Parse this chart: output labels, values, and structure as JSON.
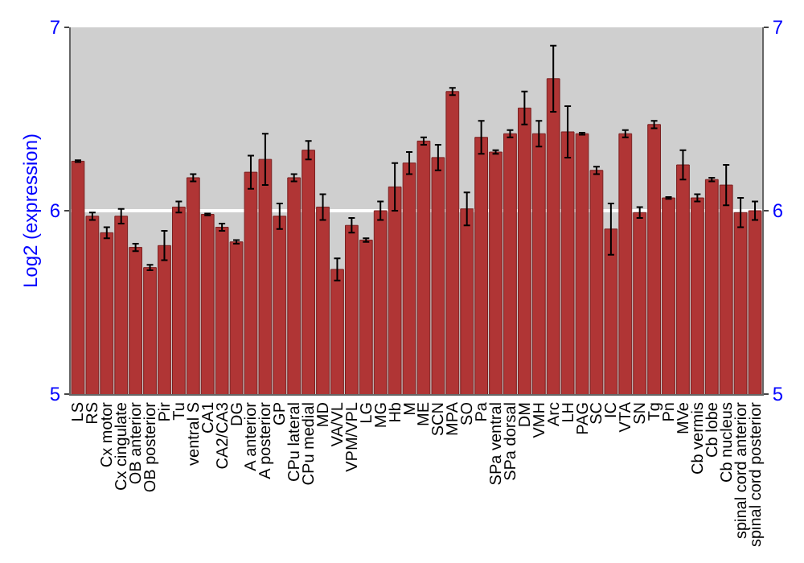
{
  "chart_data": {
    "type": "bar",
    "ylabel": "Log2 (expression)",
    "categories": [
      "LS",
      "RS",
      "Cx motor",
      "Cx cingulate",
      "OB anterior",
      "OB posterior",
      "Pir",
      "Tu",
      "ventral S",
      "CA1",
      "CA2/CA3",
      "DG",
      "A anterior",
      "A posterior",
      "GP",
      "CPu lateral",
      "CPu medial",
      "MD",
      "VA/VL",
      "VPM/VPL",
      "LG",
      "MG",
      "Hb",
      "M",
      "ME",
      "SCN",
      "MPA",
      "SO",
      "Pa",
      "SPa ventral",
      "SPa dorsal",
      "DM",
      "VMH",
      "Arc",
      "LH",
      "PAG",
      "SC",
      "IC",
      "VTA",
      "SN",
      "Tg",
      "Pn",
      "MVe",
      "Cb vermis",
      "Cb lobe",
      "Cb nucleus",
      "spinal cord anterior",
      "spinal cord posterior"
    ],
    "values": [
      6.27,
      5.97,
      5.88,
      5.97,
      5.8,
      5.69,
      5.81,
      6.02,
      6.18,
      5.98,
      5.91,
      5.83,
      6.21,
      6.28,
      5.97,
      6.18,
      6.33,
      6.02,
      5.68,
      5.92,
      5.84,
      6.0,
      6.13,
      6.26,
      6.38,
      6.29,
      6.65,
      6.01,
      6.4,
      6.32,
      6.42,
      6.56,
      6.42,
      6.72,
      6.43,
      6.42,
      6.22,
      5.9,
      6.42,
      5.99,
      6.47,
      6.07,
      6.25,
      6.07,
      6.17,
      6.14,
      5.99,
      6.0
    ],
    "errors": [
      0.005,
      0.02,
      0.03,
      0.04,
      0.02,
      0.015,
      0.08,
      0.03,
      0.02,
      0.005,
      0.02,
      0.01,
      0.09,
      0.14,
      0.07,
      0.02,
      0.05,
      0.07,
      0.06,
      0.04,
      0.01,
      0.05,
      0.13,
      0.06,
      0.02,
      0.07,
      0.02,
      0.09,
      0.09,
      0.01,
      0.02,
      0.09,
      0.07,
      0.18,
      0.14,
      0.005,
      0.02,
      0.14,
      0.02,
      0.03,
      0.02,
      0.005,
      0.08,
      0.02,
      0.01,
      0.11,
      0.08,
      0.05
    ],
    "color": "#b03535",
    "ylim": [
      5,
      7
    ],
    "yticks": [
      5,
      6,
      7
    ],
    "y2lim": [
      5,
      7
    ],
    "y2ticks": [
      5,
      6,
      7
    ],
    "grid": "y"
  }
}
